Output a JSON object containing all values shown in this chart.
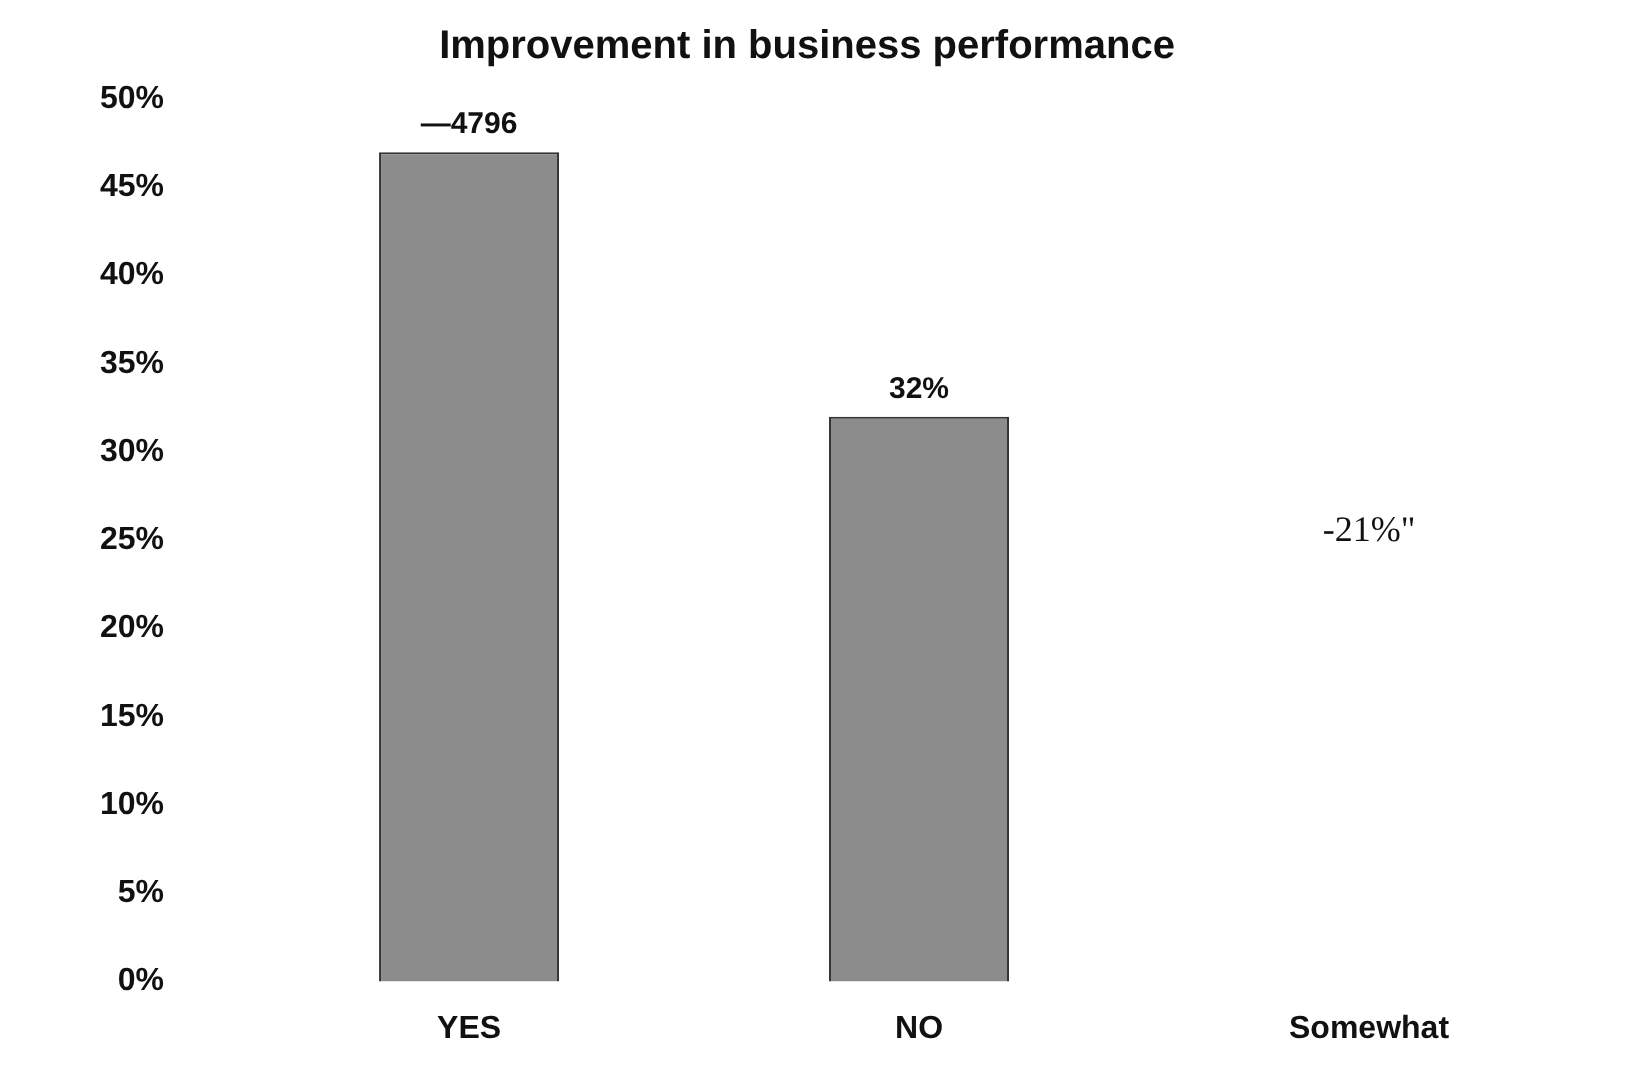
{
  "chart_data": {
    "type": "bar",
    "title": "Improvement in business performance",
    "categories": [
      "YES",
      "NO",
      "Somewhat"
    ],
    "values": [
      47,
      32,
      null
    ],
    "value_labels": [
      null,
      "32%",
      null
    ],
    "color": "#8c8c8c",
    "ylim": [
      0,
      50
    ],
    "yticks": [
      {
        "value": 0,
        "label": "0%"
      },
      {
        "value": 5,
        "label": "5%"
      },
      {
        "value": 10,
        "label": "10%"
      },
      {
        "value": 15,
        "label": "15%"
      },
      {
        "value": 20,
        "label": "20%"
      },
      {
        "value": 25,
        "label": "25%"
      },
      {
        "value": 30,
        "label": "30%"
      },
      {
        "value": 35,
        "label": "35%"
      },
      {
        "value": 40,
        "label": "40%"
      },
      {
        "value": 45,
        "label": "45%"
      },
      {
        "value": 50,
        "label": "50%"
      }
    ],
    "grid": false,
    "legend": false,
    "annotations": [
      {
        "text": "—4796",
        "x": "YES",
        "y": 47
      },
      "-21%\""
    ]
  }
}
